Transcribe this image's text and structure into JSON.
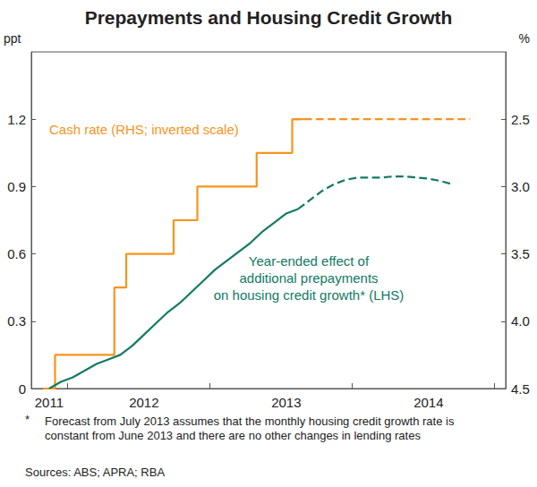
{
  "chart_data": {
    "type": "line",
    "title": "Prepayments and Housing Credit Growth",
    "y_label": "ppt",
    "y2_label": "%",
    "categories": [
      null,
      "2011",
      null,
      null,
      null,
      null,
      null,
      null,
      null,
      "2012",
      null,
      null,
      null,
      null,
      null,
      null,
      null,
      null,
      null,
      null,
      null,
      "2013",
      null,
      null,
      null,
      null,
      null,
      null,
      null,
      null,
      null,
      null,
      null,
      "2014",
      null,
      null,
      null,
      null,
      null,
      null
    ],
    "series": [
      {
        "name": "Cash rate (RHS; inverted scale)",
        "type": "step",
        "axis": "y2",
        "color": "#f7941d",
        "line_style": "solid",
        "values": [
          null,
          4.5,
          4.25,
          4.25,
          4.25,
          4.25,
          4.25,
          3.75,
          3.5,
          3.5,
          3.5,
          3.5,
          3.25,
          3.25,
          3.0,
          3.0,
          3.0,
          3.0,
          3.0,
          2.75,
          2.75,
          2.75,
          2.5,
          null,
          null,
          null,
          null,
          null,
          null,
          null,
          null,
          null,
          null,
          null,
          null,
          null,
          null,
          null,
          null,
          null
        ]
      },
      {
        "name": "Cash rate (RHS; inverted scale)",
        "type": "step",
        "axis": "y2",
        "color": "#f7941d",
        "line_style": "dashed",
        "values": [
          null,
          null,
          null,
          null,
          null,
          null,
          null,
          null,
          null,
          null,
          null,
          null,
          null,
          null,
          null,
          null,
          null,
          null,
          null,
          null,
          null,
          null,
          2.5,
          2.5,
          2.5,
          2.5,
          2.5,
          2.5,
          2.5,
          2.5,
          2.5,
          2.5,
          2.5,
          2.5,
          2.5,
          2.5,
          2.5,
          null,
          null,
          null
        ]
      },
      {
        "name": "Year-ended effect of\nadditional prepayments\non housing credit growth* (LHS)",
        "type": "line",
        "color": "#127a63",
        "line_style": "solid",
        "values": [
          null,
          0,
          0.03,
          0.05,
          0.08,
          0.11,
          0.13,
          0.15,
          0.19,
          0.24,
          0.29,
          0.34,
          0.38,
          0.43,
          0.48,
          0.53,
          0.57,
          0.61,
          0.65,
          0.7,
          0.74,
          0.78,
          0.8,
          null,
          null,
          null,
          null,
          null,
          null,
          null,
          null,
          null,
          null,
          null,
          null,
          null,
          null,
          null,
          null,
          null
        ]
      },
      {
        "name": "Year-ended effect of\nadditional prepayments\non housing credit growth* (LHS)",
        "type": "line",
        "color": "#127a63",
        "line_style": "dashed",
        "values": [
          null,
          null,
          null,
          null,
          null,
          null,
          null,
          null,
          null,
          null,
          null,
          null,
          null,
          null,
          null,
          null,
          null,
          null,
          null,
          null,
          null,
          null,
          0.8,
          0.84,
          0.88,
          0.91,
          0.93,
          0.94,
          0.94,
          0.94,
          0.945,
          0.945,
          0.94,
          0.935,
          0.925,
          0.91,
          null,
          null,
          null,
          null
        ]
      }
    ],
    "ylim": [
      0,
      1.5
    ],
    "yticks": [
      0,
      0.3,
      0.6,
      0.9,
      1.2
    ],
    "y2lim": [
      4.5,
      2
    ],
    "y2ticks": [
      {
        "value": 4.5,
        "label": "4.5"
      },
      {
        "value": 4,
        "label": "4.0"
      },
      3.5,
      {
        "value": 3,
        "label": "3.0"
      },
      2.5
    ],
    "grid": false,
    "footnote": {
      "marker": "*",
      "text": "Forecast from July 2013 assumes that the monthly housing credit growth rate is constant from June 2013 and there are no other changes in lending rates"
    },
    "sources": "Sources: ABS; APRA; RBA"
  }
}
